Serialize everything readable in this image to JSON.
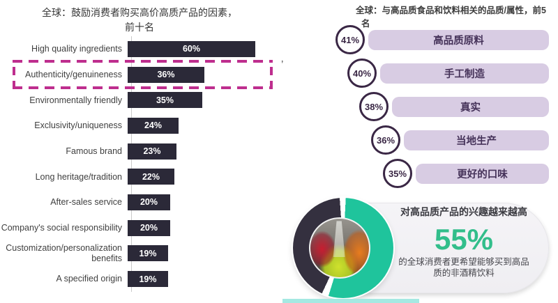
{
  "left_chart": {
    "title_line1": "全球：鼓励消费者购买高价高质产品的因素，",
    "title_line2": "前十名",
    "bar_color": "#2B2938",
    "label_color": "#3F3F3F",
    "value_color": "#FFFFFF",
    "highlight_box_color": "#BE2E8E",
    "highlighted_category": "Authenticity/genuineness",
    "annotation_mark": "’"
  },
  "right_list": {
    "title_line1": "全球：与高品质食品和饮料相关的品质/属性，前5",
    "title_line2": "名",
    "bar_color": "#D8CCE3",
    "circle_border_color": "#3A2745",
    "circle_fill": "#FFFFFF",
    "text_color": "#453259"
  },
  "callout": {
    "heading": "对高品质产品的兴趣越来越高",
    "value": "55%",
    "value_color": "#32BE8B",
    "body_line1": "的全球消费者更希望能够买到高品",
    "body_line2": "质的非酒精饮料",
    "donut_teal": "#1FC49C",
    "donut_navy": "#34303F"
  },
  "bottom_strip_color": "#A5E9E2",
  "chart_data": [
    {
      "type": "bar",
      "orientation": "horizontal",
      "title": "全球：鼓励消费者购买高价高质产品的因素，前十名",
      "categories": [
        "High quality ingredients",
        "Authenticity/genuineness",
        "Environmentally friendly",
        "Exclusivity/uniqueness",
        "Famous brand",
        "Long heritage/tradition",
        "After-sales service",
        "Company's social responsibility",
        "Customization/personalization benefits",
        "A specified origin"
      ],
      "values": [
        60,
        36,
        35,
        24,
        23,
        22,
        20,
        20,
        19,
        19
      ],
      "unit": "%",
      "highlighted_category": "Authenticity/genuineness",
      "legend": "none",
      "grid": "off",
      "xlim": [
        0,
        60
      ]
    },
    {
      "type": "bar",
      "orientation": "horizontal",
      "title": "全球：与高品质食品和饮料相关的品质/属性，前5名",
      "categories": [
        "高品质原料",
        "手工制造",
        "真实",
        "当地生产",
        "更好的口味"
      ],
      "values": [
        41,
        40,
        38,
        36,
        35
      ],
      "unit": "%",
      "legend": "none",
      "grid": "off"
    },
    {
      "type": "pie",
      "title": "对高品质产品的兴趣越来越高",
      "slices": [
        {
          "label": "55%",
          "value": 55,
          "color": "#1FC49C"
        },
        {
          "label": "",
          "value": 45,
          "color": "#34303F"
        }
      ],
      "callout_value": "55%",
      "callout_text": "的全球消费者更希望能够买到高品质的非酒精饮料"
    }
  ]
}
